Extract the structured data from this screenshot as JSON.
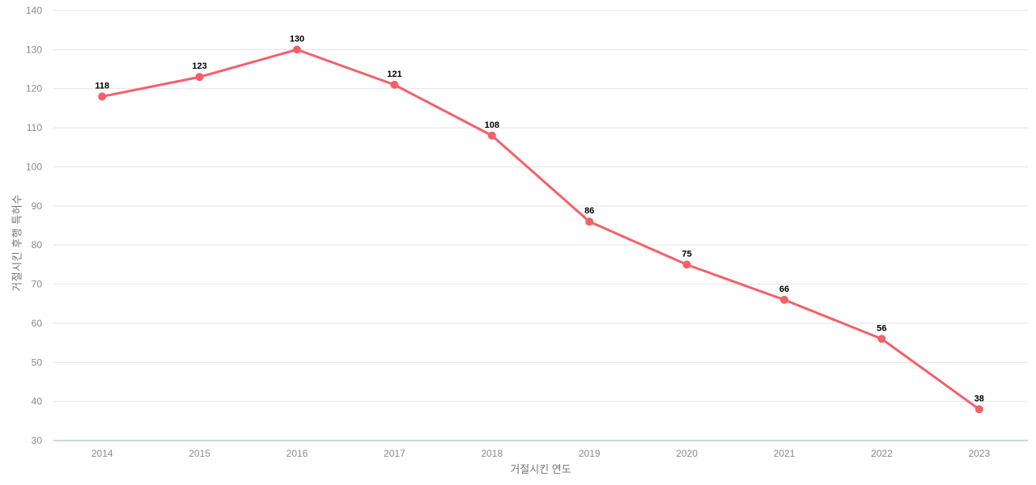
{
  "chart_data": {
    "type": "line",
    "title": "",
    "xlabel": "거절시킨 연도",
    "ylabel": "거절시킨 후행 특허수",
    "categories": [
      "2014",
      "2015",
      "2016",
      "2017",
      "2018",
      "2019",
      "2020",
      "2021",
      "2022",
      "2023"
    ],
    "values": [
      118,
      123,
      130,
      121,
      108,
      86,
      75,
      66,
      56,
      38
    ],
    "data_labels": [
      "118",
      "123",
      "130",
      "121",
      "108",
      "86",
      "75",
      "66",
      "56",
      "38"
    ],
    "ylim": [
      30,
      140
    ],
    "yticks": [
      30,
      40,
      50,
      60,
      70,
      80,
      90,
      100,
      110,
      120,
      130,
      140
    ],
    "grid": true,
    "legend_position": "none",
    "colors": {
      "line": "#f4606a",
      "point": "#f4606a",
      "data_label": "#000000",
      "gridline": "#e3e3e3",
      "baseline": "#c9d4e8",
      "tick_label": "#8a8a8a",
      "axis_title": "#757575",
      "background": "#ffffff"
    }
  }
}
